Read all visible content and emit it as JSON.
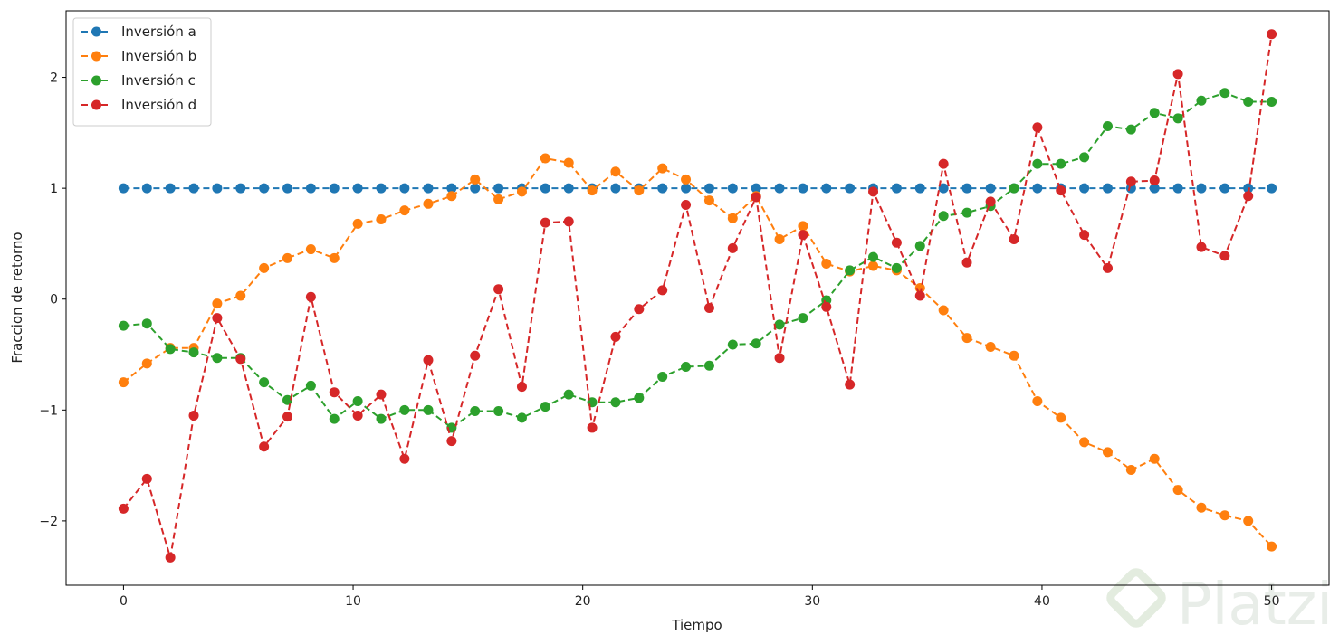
{
  "chart_data": {
    "type": "line",
    "title": "",
    "xlabel": "Tiempo",
    "ylabel": "Fraccion de retorno",
    "xlim": [
      -2.5,
      52.5
    ],
    "ylim": [
      -2.58,
      2.6
    ],
    "xticks": [
      0,
      10,
      20,
      30,
      40,
      50
    ],
    "yticks": [
      -2,
      -1,
      0,
      1,
      2
    ],
    "xtick_labels": [
      "0",
      "10",
      "20",
      "30",
      "40",
      "50"
    ],
    "ytick_labels": [
      "−2",
      "−1",
      "0",
      "1",
      "2"
    ],
    "legend_position": "top-left",
    "grid": false,
    "x": [
      0,
      1.02,
      2.04,
      3.06,
      4.08,
      5.1,
      6.12,
      7.14,
      8.16,
      9.18,
      10.2,
      11.22,
      12.24,
      13.27,
      14.29,
      15.31,
      16.33,
      17.35,
      18.37,
      19.39,
      20.41,
      21.43,
      22.45,
      23.47,
      24.49,
      25.51,
      26.53,
      27.55,
      28.57,
      29.59,
      30.61,
      31.63,
      32.65,
      33.67,
      34.69,
      35.71,
      36.73,
      37.76,
      38.78,
      39.8,
      40.82,
      41.84,
      42.86,
      43.88,
      44.9,
      45.92,
      46.94,
      47.96,
      48.98,
      50
    ],
    "series": [
      {
        "name": "Inversión a",
        "color": "#1f77b4",
        "values": [
          1,
          1,
          1,
          1,
          1,
          1,
          1,
          1,
          1,
          1,
          1,
          1,
          1,
          1,
          1,
          1,
          1,
          1,
          1,
          1,
          1,
          1,
          1,
          1,
          1,
          1,
          1,
          1,
          1,
          1,
          1,
          1,
          1,
          1,
          1,
          1,
          1,
          1,
          1,
          1,
          1,
          1,
          1,
          1,
          1,
          1,
          1,
          1,
          1,
          1
        ]
      },
      {
        "name": "Inversión b",
        "color": "#ff7f0e",
        "values": [
          -0.75,
          -0.58,
          -0.44,
          -0.44,
          -0.04,
          0.03,
          0.28,
          0.37,
          0.45,
          0.37,
          0.68,
          0.72,
          0.8,
          0.86,
          0.93,
          1.08,
          0.9,
          0.97,
          1.27,
          1.23,
          0.98,
          1.15,
          0.98,
          1.18,
          1.08,
          0.89,
          0.73,
          0.93,
          0.54,
          0.66,
          0.32,
          0.25,
          0.3,
          0.26,
          0.1,
          -0.1,
          -0.35,
          -0.43,
          -0.51,
          -0.92,
          -1.07,
          -1.29,
          -1.38,
          -1.54,
          -1.44,
          -1.72,
          -1.88,
          -1.95,
          -2.0,
          -2.23
        ]
      },
      {
        "name": "Inversión c",
        "color": "#2ca02c",
        "values": [
          -0.24,
          -0.22,
          -0.45,
          -0.48,
          -0.53,
          -0.53,
          -0.75,
          -0.91,
          -0.78,
          -1.08,
          -0.92,
          -1.08,
          -1.0,
          -1.0,
          -1.16,
          -1.01,
          -1.01,
          -1.07,
          -0.97,
          -0.86,
          -0.93,
          -0.93,
          -0.89,
          -0.7,
          -0.61,
          -0.6,
          -0.41,
          -0.4,
          -0.23,
          -0.17,
          -0.01,
          0.26,
          0.38,
          0.28,
          0.48,
          0.75,
          0.78,
          0.84,
          1.0,
          1.22,
          1.22,
          1.28,
          1.56,
          1.53,
          1.68,
          1.63,
          1.79,
          1.86,
          1.78,
          1.78
        ]
      },
      {
        "name": "Inversión d",
        "color": "#d62728",
        "values": [
          -1.89,
          -1.62,
          -2.33,
          -1.05,
          -0.17,
          -0.54,
          -1.33,
          -1.06,
          0.02,
          -0.84,
          -1.05,
          -0.86,
          -1.44,
          -0.55,
          -1.28,
          -0.51,
          0.09,
          -0.79,
          0.69,
          0.7,
          -1.16,
          -0.34,
          -0.09,
          0.08,
          0.85,
          -0.08,
          0.46,
          0.92,
          -0.53,
          0.58,
          -0.07,
          -0.77,
          0.97,
          0.51,
          0.03,
          1.22,
          0.33,
          0.88,
          0.54,
          1.55,
          0.98,
          0.58,
          0.28,
          1.06,
          1.07,
          2.03,
          0.47,
          0.39,
          0.93,
          2.39
        ]
      }
    ]
  },
  "watermark": {
    "text": "Platzi"
  }
}
